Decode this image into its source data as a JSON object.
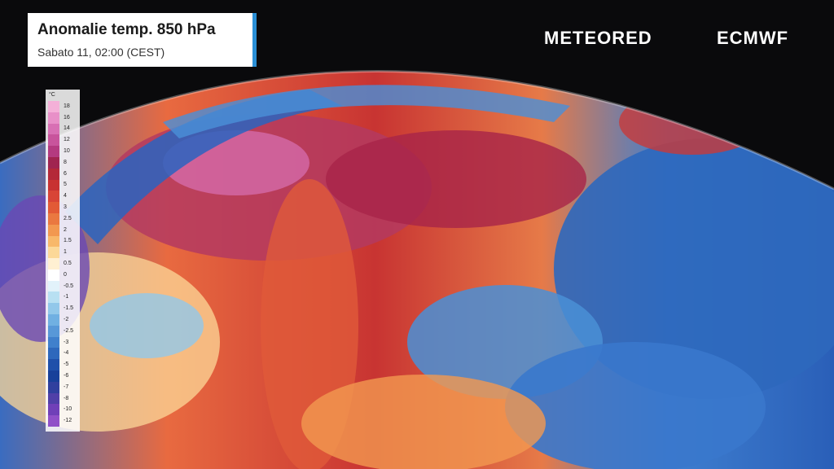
{
  "header": {
    "title": "Anomalie temp. 850 hPa",
    "subtitle": "Sabato 11, 02:00 (CEST)"
  },
  "logos": {
    "left": "METEORED",
    "right": "ECMWF"
  },
  "legend": {
    "unit": "°C",
    "stops": [
      {
        "label": "18",
        "color": "#f4b0d8"
      },
      {
        "label": "16",
        "color": "#e890c8"
      },
      {
        "label": "14",
        "color": "#d870b4"
      },
      {
        "label": "12",
        "color": "#c8549c"
      },
      {
        "label": "10",
        "color": "#b43a80"
      },
      {
        "label": "8",
        "color": "#a02450"
      },
      {
        "label": "6",
        "color": "#b42838"
      },
      {
        "label": "5",
        "color": "#c83232"
      },
      {
        "label": "4",
        "color": "#d84436"
      },
      {
        "label": "3",
        "color": "#e25a36"
      },
      {
        "label": "2.5",
        "color": "#ea7840"
      },
      {
        "label": "2",
        "color": "#f29850"
      },
      {
        "label": "1.5",
        "color": "#f8b86a"
      },
      {
        "label": "1",
        "color": "#fcd898"
      },
      {
        "label": "0.5",
        "color": "#fff0d2"
      },
      {
        "label": "0",
        "color": "#ffffff"
      },
      {
        "label": "-0.5",
        "color": "#e2f2fa"
      },
      {
        "label": "-1",
        "color": "#b8e0f2"
      },
      {
        "label": "-1.5",
        "color": "#92c8ea"
      },
      {
        "label": "-2",
        "color": "#70b0e2"
      },
      {
        "label": "-2.5",
        "color": "#5898d8"
      },
      {
        "label": "-3",
        "color": "#4080cc"
      },
      {
        "label": "-4",
        "color": "#2e68bc"
      },
      {
        "label": "-5",
        "color": "#2050aa"
      },
      {
        "label": "-6",
        "color": "#18409a"
      },
      {
        "label": "-7",
        "color": "#30409e"
      },
      {
        "label": "-8",
        "color": "#5040a8"
      },
      {
        "label": "-10",
        "color": "#7040b8"
      },
      {
        "label": "-12",
        "color": "#9050c8"
      }
    ]
  }
}
